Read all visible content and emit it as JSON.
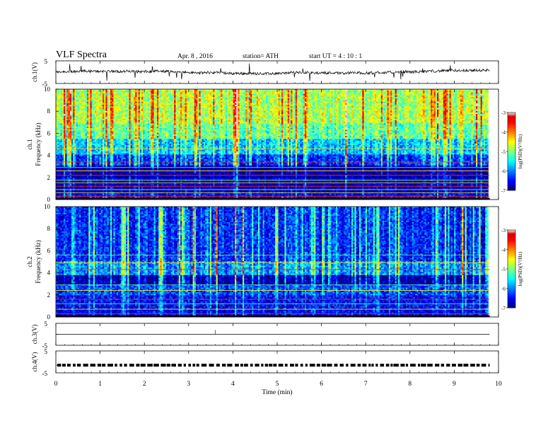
{
  "header": {
    "title": "VLF  Spectra",
    "date": "Apr.  8  ,  2016",
    "station": "station= ATH",
    "start": "start  UT  =   4  : 10 : 1"
  },
  "chart_data": [
    {
      "type": "line",
      "panel": "ch1-waveform",
      "ylabel": "ch.1(V)",
      "yticks": [
        "5",
        "-5"
      ],
      "ylim": [
        -5,
        5
      ],
      "xlim": [
        0,
        10
      ],
      "x_end": 9.8,
      "baseline": 0
    },
    {
      "type": "heatmap",
      "panel": "ch1-spectrogram",
      "ylabel_line1": "ch.1",
      "ylabel_line2": "Frequency  (kHz)",
      "yticks": [
        "0",
        "2",
        "4",
        "6",
        "8",
        "10"
      ],
      "ylim": [
        0,
        10
      ],
      "xlim": [
        0,
        10
      ],
      "x_end": 9.8,
      "colorbar": {
        "ticks": [
          "-3",
          "-4",
          "-5",
          "-6",
          "-7"
        ],
        "label": "log(PSD)(V²/Hz)",
        "range": [
          -7,
          -3
        ]
      },
      "bands": [
        {
          "f0": 0.0,
          "f1": 0.8,
          "v": -6.6
        },
        {
          "f0": 0.8,
          "f1": 2.0,
          "v": -6.8
        },
        {
          "f0": 2.0,
          "f1": 3.2,
          "v": -6.9
        },
        {
          "f0": 3.2,
          "f1": 4.2,
          "v": -6.3
        },
        {
          "f0": 4.2,
          "f1": 5.5,
          "v": -5.7
        },
        {
          "f0": 5.5,
          "f1": 7.0,
          "v": -5.1
        },
        {
          "f0": 7.0,
          "f1": 10.0,
          "v": -4.8
        }
      ],
      "lines_khz": [
        0.3,
        0.6,
        0.9,
        1.2,
        1.5,
        1.75,
        2.2,
        2.6,
        2.9,
        3.4,
        4.6,
        6.3
      ]
    },
    {
      "type": "heatmap",
      "panel": "ch2-spectrogram",
      "ylabel_line1": "ch.2",
      "ylabel_line2": "Frequency  (kHz)",
      "yticks": [
        "0",
        "2",
        "4",
        "6",
        "8",
        "10"
      ],
      "ylim": [
        0,
        10
      ],
      "xlim": [
        0,
        10
      ],
      "x_end": 9.8,
      "colorbar": {
        "ticks": [
          "-3",
          "-4",
          "-5",
          "-6",
          "-7"
        ],
        "label": "log(PSD)(V²/Hz)",
        "range": [
          -7,
          -3
        ]
      },
      "bands": [
        {
          "f0": 0.0,
          "f1": 0.8,
          "v": -6.6
        },
        {
          "f0": 0.8,
          "f1": 2.0,
          "v": -6.5
        },
        {
          "f0": 2.0,
          "f1": 3.0,
          "v": -6.2
        },
        {
          "f0": 3.0,
          "f1": 3.8,
          "v": -6.8
        },
        {
          "f0": 3.8,
          "f1": 5.2,
          "v": -5.9
        },
        {
          "f0": 5.2,
          "f1": 10.0,
          "v": -6.3
        }
      ],
      "lines_khz": [
        0.3,
        0.7,
        1.2,
        1.6,
        2.4,
        2.9,
        4.3,
        4.9,
        5.6
      ]
    },
    {
      "type": "line",
      "panel": "ch3-waveform",
      "ylabel": "ch.3(V)",
      "yticks": [
        "5",
        "-5"
      ],
      "ylim": [
        -5,
        5
      ],
      "xlim": [
        0,
        10
      ],
      "x_end": 9.8,
      "baseline": 0
    },
    {
      "type": "line",
      "panel": "ch4-waveform",
      "ylabel": "ch.4(V)",
      "yticks": [
        "5",
        "-5"
      ],
      "ylim": [
        -5,
        5
      ],
      "xlim": [
        0,
        10
      ],
      "x_end": 9.8,
      "baseline": -1.5
    }
  ],
  "xaxis": {
    "label": "Time  (min)",
    "ticks": [
      "0",
      "1",
      "2",
      "3",
      "4",
      "5",
      "6",
      "7",
      "8",
      "9",
      "10"
    ]
  },
  "colors": {
    "spectrum_low": "#00007f",
    "spectrum_high": "#ff0000",
    "colorbar_top": "#ffffff"
  }
}
